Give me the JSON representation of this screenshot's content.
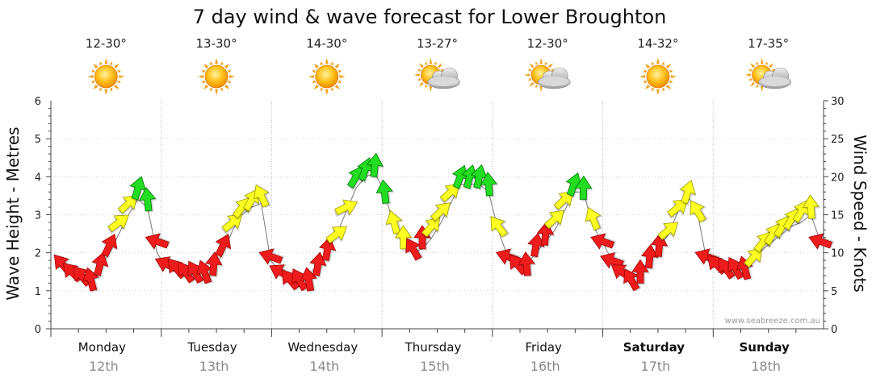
{
  "chart_data": {
    "type": "line",
    "title": "7 day wind & wave forecast for Lower Broughton",
    "ylabel": "Wave Height - Metres",
    "y2label": "Wind Speed - Knots",
    "ylim": [
      0,
      6
    ],
    "y2lim": [
      0,
      30
    ],
    "yticks": [
      "0",
      "1",
      "2",
      "3",
      "4",
      "5",
      "6"
    ],
    "y2ticks": [
      "0",
      "5",
      "10",
      "15",
      "20",
      "25",
      "30"
    ],
    "watermark": "www.seabreeze.com.au",
    "grid": true,
    "days": [
      {
        "name": "Monday",
        "date": "12th",
        "temp": "12-30°",
        "weather": "sun",
        "bold": false
      },
      {
        "name": "Tuesday",
        "date": "13th",
        "temp": "13-30°",
        "weather": "sun",
        "bold": false
      },
      {
        "name": "Wednesday",
        "date": "14th",
        "temp": "14-30°",
        "weather": "sun",
        "bold": false
      },
      {
        "name": "Thursday",
        "date": "15th",
        "temp": "13-27°",
        "weather": "sun-cloud",
        "bold": false
      },
      {
        "name": "Friday",
        "date": "16th",
        "temp": "12-30°",
        "weather": "sun-cloud",
        "bold": false
      },
      {
        "name": "Saturday",
        "date": "17th",
        "temp": "14-32°",
        "weather": "sun",
        "bold": true
      },
      {
        "name": "Sunday",
        "date": "18th",
        "temp": "17-35°",
        "weather": "sun-cloud",
        "bold": true
      }
    ],
    "wind_knots": [
      8.5,
      7.5,
      7,
      6.5,
      8.5,
      11,
      14,
      16.5,
      18.5,
      17,
      11.5,
      8.5,
      8,
      7.5,
      7.5,
      7.5,
      8.5,
      11,
      14,
      16,
      17,
      17.5,
      9.5,
      7.5,
      6.5,
      6.5,
      6.5,
      8.5,
      10.5,
      12.5,
      16,
      20,
      21,
      21.5,
      18,
      14,
      12,
      10.5,
      12,
      13.5,
      15.5,
      18,
      20,
      20,
      20,
      19,
      13.5,
      9.5,
      8.5,
      8.5,
      11,
      12.5,
      14.5,
      17,
      19,
      18.5,
      14.5,
      11.5,
      9,
      7.5,
      6.5,
      7.5,
      9.5,
      11,
      13,
      16,
      18,
      15.5,
      9.5,
      8.5,
      8,
      8,
      8,
      9.5,
      11.5,
      12.5,
      13.5,
      14.5,
      15.5,
      16,
      11.5
    ],
    "wind_colors": [
      "red",
      "red",
      "red",
      "red",
      "red",
      "red",
      "yellow",
      "yellow",
      "green",
      "green",
      "red",
      "red",
      "red",
      "red",
      "red",
      "red",
      "red",
      "red",
      "yellow",
      "yellow",
      "yellow",
      "yellow",
      "red",
      "red",
      "red",
      "red",
      "red",
      "red",
      "red",
      "yellow",
      "yellow",
      "green",
      "green",
      "green",
      "green",
      "yellow",
      "yellow",
      "red",
      "red",
      "yellow",
      "yellow",
      "yellow",
      "green",
      "green",
      "green",
      "green",
      "yellow",
      "red",
      "red",
      "red",
      "red",
      "red",
      "yellow",
      "yellow",
      "green",
      "green",
      "yellow",
      "red",
      "red",
      "red",
      "red",
      "red",
      "red",
      "red",
      "yellow",
      "yellow",
      "yellow",
      "yellow",
      "red",
      "red",
      "red",
      "red",
      "red",
      "yellow",
      "yellow",
      "yellow",
      "yellow",
      "yellow",
      "yellow",
      "yellow",
      "red"
    ],
    "wave_m": [
      1.6,
      1.5,
      1.4,
      1.4,
      1.6,
      2.0,
      2.5,
      3.0,
      3.4,
      3.2,
      2.0,
      1.6,
      1.5,
      1.5,
      1.5,
      1.5,
      1.6,
      2.0,
      2.6,
      3.0,
      3.2,
      3.3,
      1.8,
      1.5,
      1.3,
      1.3,
      1.4,
      1.7,
      2.1,
      2.5,
      3.1,
      3.7,
      4.0,
      4.1,
      3.6,
      2.7,
      2.3,
      2.0,
      2.1,
      2.4,
      2.8,
      3.3,
      3.8,
      3.8,
      3.8,
      3.6,
      2.6,
      1.9,
      1.7,
      1.7,
      2.0,
      2.3,
      2.6,
      3.1,
      3.6,
      3.6,
      2.7,
      2.3,
      1.8,
      1.5,
      1.3,
      1.5,
      1.8,
      2.1,
      2.5,
      3.1,
      3.5,
      3.1,
      1.8,
      1.7,
      1.6,
      1.6,
      1.6,
      1.8,
      2.1,
      2.3,
      2.5,
      2.7,
      2.8,
      3.0,
      2.3
    ]
  }
}
